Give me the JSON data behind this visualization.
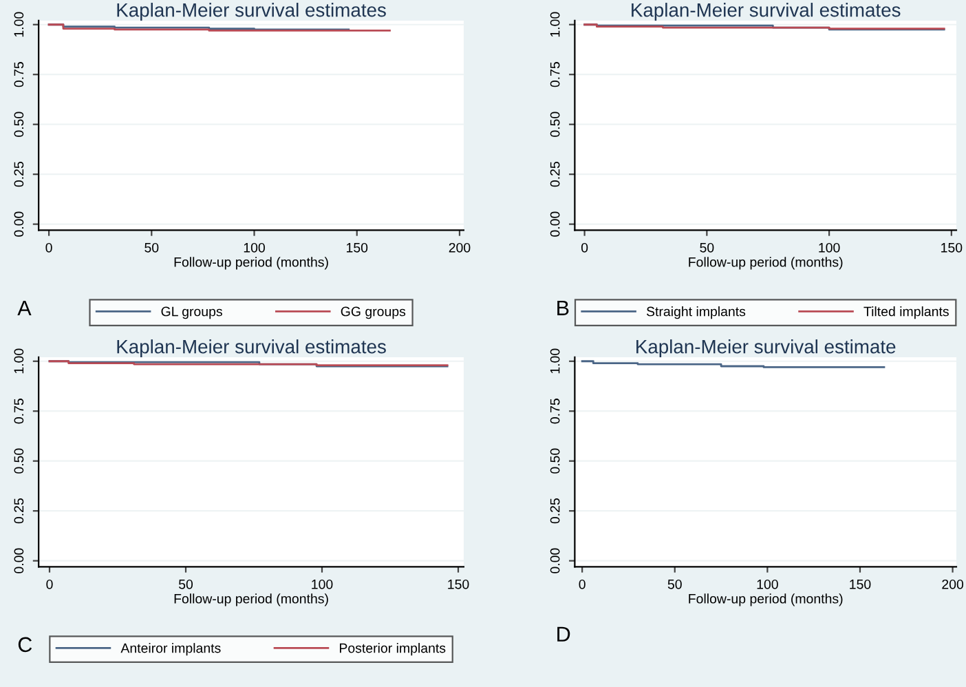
{
  "chart_data": [
    {
      "type": "step",
      "title": "Kaplan-Meier survival estimates",
      "xlabel": "Follow-up period (months)",
      "xlim": [
        -5,
        202
      ],
      "xticks": [
        0,
        50,
        100,
        150,
        200
      ],
      "ylim": [
        -0.03,
        1.02
      ],
      "yticks": [
        {
          "value": 0,
          "label": "0.00"
        },
        {
          "value": 0.25,
          "label": "0.25"
        },
        {
          "value": 0.5,
          "label": "0.50"
        },
        {
          "value": 0.75,
          "label": "0.75"
        },
        {
          "value": 1,
          "label": "1.00"
        }
      ],
      "grid": "y",
      "legend": "bottom",
      "annotations": [
        "A"
      ],
      "series": [
        {
          "name": "GL groups",
          "color": "#4a6586",
          "x": [
            0,
            7,
            32,
            78,
            100,
            146
          ],
          "values": [
            1.0,
            0.99,
            0.985,
            0.98,
            0.975,
            0.975
          ]
        },
        {
          "name": "GG groups",
          "color": "#b94a54",
          "x": [
            0,
            7,
            32,
            78,
            166
          ],
          "values": [
            1.0,
            0.98,
            0.975,
            0.97,
            0.97
          ]
        }
      ]
    },
    {
      "type": "step",
      "title": "Kaplan-Meier survival estimates",
      "xlabel": "Follow-up period (months)",
      "xlim": [
        -4,
        152
      ],
      "xticks": [
        0,
        50,
        100,
        150
      ],
      "ylim": [
        -0.03,
        1.02
      ],
      "yticks": [
        {
          "value": 0,
          "label": "0.00"
        },
        {
          "value": 0.25,
          "label": "0.25"
        },
        {
          "value": 0.5,
          "label": "0.50"
        },
        {
          "value": 0.75,
          "label": "0.75"
        },
        {
          "value": 1,
          "label": "1.00"
        }
      ],
      "grid": "y",
      "legend": "bottom",
      "annotations": [
        "B"
      ],
      "series": [
        {
          "name": "Straight implants",
          "color": "#4a6586",
          "x": [
            0,
            5,
            77,
            100,
            147
          ],
          "values": [
            1.0,
            0.995,
            0.985,
            0.975,
            0.975
          ]
        },
        {
          "name": "Tilted implants",
          "color": "#b94a54",
          "x": [
            0,
            5,
            32,
            100,
            147
          ],
          "values": [
            1.0,
            0.99,
            0.985,
            0.98,
            0.98
          ]
        }
      ]
    },
    {
      "type": "step",
      "title": "Kaplan-Meier survival estimates",
      "xlabel": "Follow-up period (months)",
      "xlim": [
        -4,
        152
      ],
      "xticks": [
        0,
        50,
        100,
        150
      ],
      "ylim": [
        -0.03,
        1.02
      ],
      "yticks": [
        {
          "value": 0,
          "label": "0.00"
        },
        {
          "value": 0.25,
          "label": "0.25"
        },
        {
          "value": 0.5,
          "label": "0.50"
        },
        {
          "value": 0.75,
          "label": "0.75"
        },
        {
          "value": 1,
          "label": "1.00"
        }
      ],
      "grid": "y",
      "legend": "bottom",
      "annotations": [
        "C"
      ],
      "series": [
        {
          "name": "Anteiror implants",
          "color": "#4a6586",
          "x": [
            0,
            7,
            77,
            98,
            146
          ],
          "values": [
            1.0,
            0.995,
            0.985,
            0.975,
            0.975
          ]
        },
        {
          "name": "Posterior implants",
          "color": "#b94a54",
          "x": [
            0,
            7,
            31,
            98,
            146
          ],
          "values": [
            1.0,
            0.99,
            0.985,
            0.98,
            0.98
          ]
        }
      ]
    },
    {
      "type": "step",
      "title": "Kaplan-Meier survival estimate",
      "xlabel": "Follow-up period (months)",
      "xlim": [
        -4,
        202
      ],
      "xticks": [
        0,
        50,
        100,
        150,
        200
      ],
      "ylim": [
        -0.03,
        1.02
      ],
      "yticks": [
        {
          "value": 0,
          "label": "0.00"
        },
        {
          "value": 0.25,
          "label": "0.25"
        },
        {
          "value": 0.5,
          "label": "0.50"
        },
        {
          "value": 0.75,
          "label": "0.75"
        },
        {
          "value": 1,
          "label": "1.00"
        }
      ],
      "grid": "y",
      "annotations": [
        "D"
      ],
      "series": [
        {
          "color": "#4a6586",
          "x": [
            0,
            6,
            30,
            75,
            98,
            163
          ],
          "values": [
            1.0,
            0.99,
            0.985,
            0.975,
            0.97,
            0.97
          ]
        }
      ]
    }
  ]
}
